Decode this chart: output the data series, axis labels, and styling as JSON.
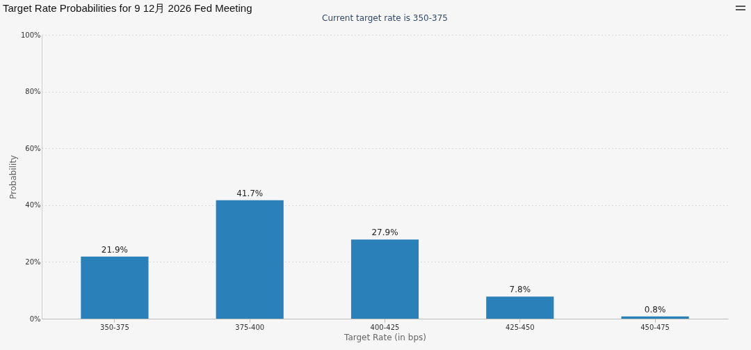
{
  "chart_data": {
    "type": "bar",
    "title": "Target Rate Probabilities for 9 12月 2026 Fed Meeting",
    "subtitle": "Current target rate is 350-375",
    "xlabel": "Target Rate (in bps)",
    "ylabel": "Probability",
    "categories": [
      "350-375",
      "375-400",
      "400-425",
      "425-450",
      "450-475"
    ],
    "values": [
      21.9,
      41.7,
      27.9,
      7.8,
      0.8
    ],
    "value_labels": [
      "21.9%",
      "41.7%",
      "27.9%",
      "7.8%",
      "0.8%"
    ],
    "color": "#2a80b9",
    "ylim": [
      0,
      100
    ],
    "yticks": [
      {
        "value": 0,
        "label": "0%"
      },
      {
        "value": 20,
        "label": "20%"
      },
      {
        "value": 40,
        "label": "40%"
      },
      {
        "value": 60,
        "label": "60%"
      },
      {
        "value": 80,
        "label": "80%"
      },
      {
        "value": 100,
        "label": "100%"
      }
    ],
    "grid": "y"
  }
}
